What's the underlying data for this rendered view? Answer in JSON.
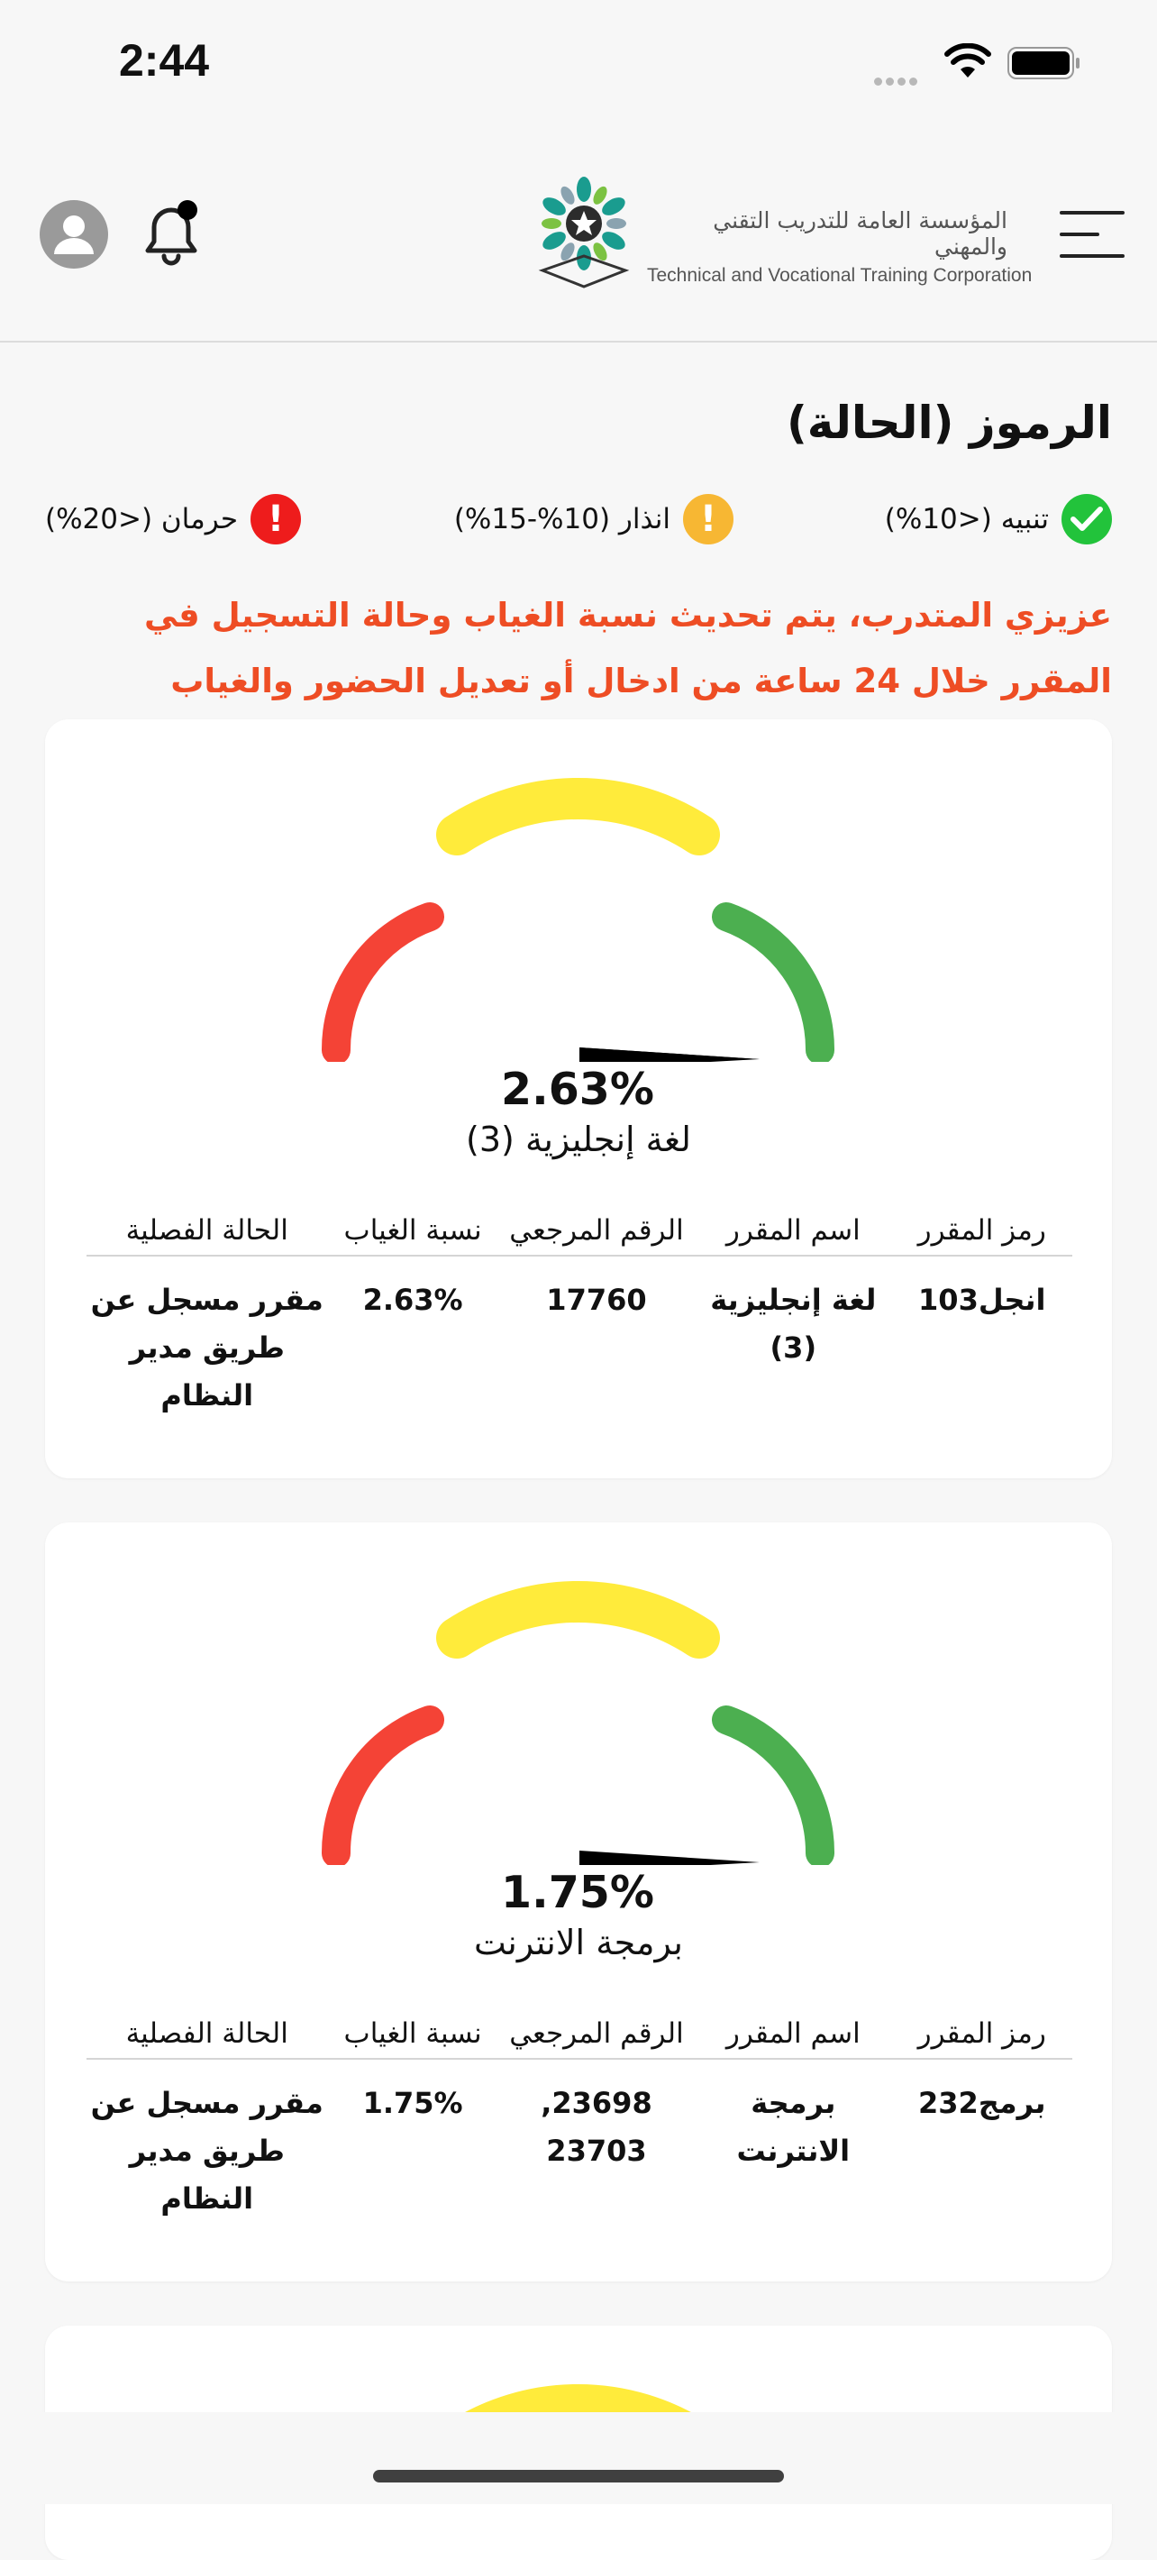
{
  "status_bar": {
    "time": "2:44"
  },
  "header": {
    "logo_ar": "المؤسسة العامة للتدريب التقني والمهني",
    "logo_en": "Technical and Vocational Training Corporation"
  },
  "legend": {
    "title": "الرموز (الحالة)",
    "items": [
      {
        "label": "تنبيه (<10%)",
        "color": "#22c33b"
      },
      {
        "label": "انذار (10%-15%)",
        "color": "#f7b733"
      },
      {
        "label": "حرمان (<20%)",
        "color": "#ee1c1c"
      }
    ]
  },
  "notice": "عزيزي المتدرب، يتم تحديث نسبة الغياب وحالة التسجيل في المقرر خلال 24 ساعة من ادخال أو تعديل الحضور والغياب",
  "table_headers": [
    "رمز المقرر",
    "اسم المقرر",
    "الرقم المرجعي",
    "نسبة الغياب",
    "الحالة الفصلية"
  ],
  "gauge_colors": {
    "low": "#f44336",
    "mid": "#ffeb3b",
    "high": "#4caf50"
  },
  "courses": [
    {
      "percent_label": "2.63%",
      "percent_value": 2.63,
      "name": "لغة إنجليزية (3)",
      "code": "انجل103",
      "course_name": "لغة إنجليزية (3)",
      "reference": "17760",
      "absence": "2.63%",
      "status": "مقرر مسجل عن طريق مدير النظام"
    },
    {
      "percent_label": "1.75%",
      "percent_value": 1.75,
      "name": "برمجة الانترنت",
      "code": "برمج232",
      "course_name": "برمجة الانترنت",
      "reference": "23698, 23703",
      "absence": "1.75%",
      "status": "مقرر مسجل عن طريق مدير النظام"
    }
  ]
}
